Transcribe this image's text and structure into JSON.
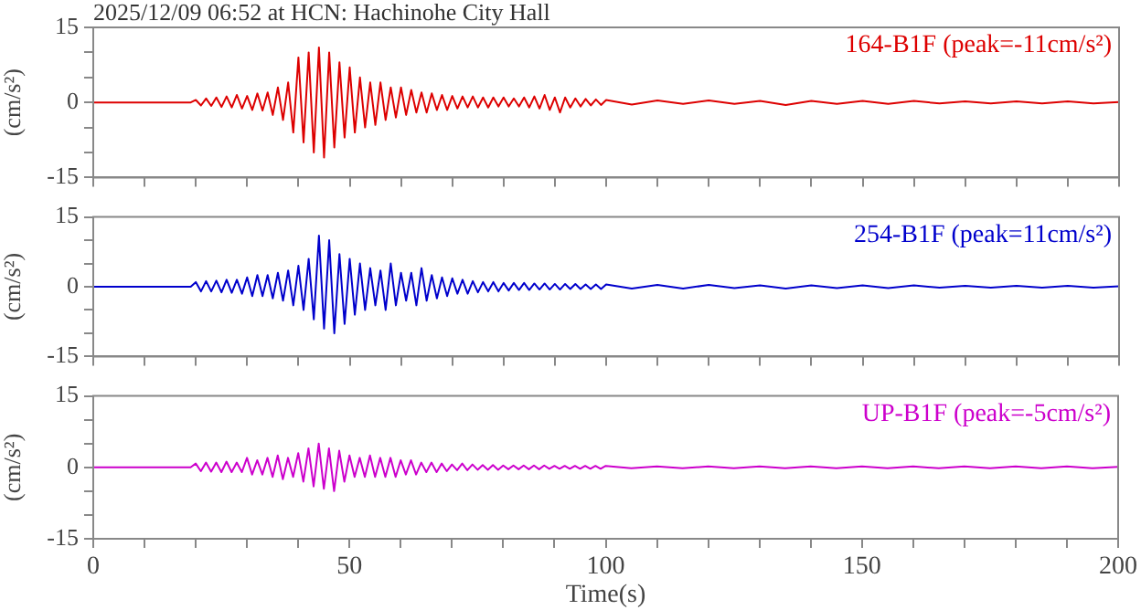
{
  "chart_data": [
    {
      "type": "line",
      "title": "2025/12/09 06:52 at HCN: Hachinohe City Hall",
      "ylabel": "(cm/s²)",
      "legend": "top right",
      "marker": "none",
      "grid": false,
      "tick_labels": "y",
      "xlim": [
        0,
        200
      ],
      "xticks": [
        0,
        {
          "value": 10,
          "label": null
        },
        {
          "value": 20,
          "label": null
        },
        {
          "value": 30,
          "label": null
        },
        {
          "value": 40,
          "label": null
        },
        50,
        {
          "value": 60,
          "label": null
        },
        {
          "value": 70,
          "label": null
        },
        {
          "value": 80,
          "label": null
        },
        {
          "value": 90,
          "label": null
        },
        100,
        {
          "value": 110,
          "label": null
        },
        {
          "value": 120,
          "label": null
        },
        {
          "value": 130,
          "label": null
        },
        {
          "value": 140,
          "label": null
        },
        150,
        {
          "value": 160,
          "label": null
        },
        {
          "value": 170,
          "label": null
        },
        {
          "value": 180,
          "label": null
        },
        {
          "value": 190,
          "label": null
        },
        200
      ],
      "ylim": [
        -15,
        15
      ],
      "yticks": [
        -15,
        {
          "value": -10,
          "label": null
        },
        {
          "value": -5,
          "label": null
        },
        0,
        {
          "value": 5,
          "label": null
        },
        {
          "value": 10,
          "label": null
        },
        15
      ],
      "x": [
        0,
        19,
        20,
        21,
        22,
        23,
        24,
        25,
        26,
        27,
        28,
        29,
        30,
        31,
        32,
        33,
        34,
        35,
        36,
        37,
        38,
        39,
        40,
        41,
        42,
        43,
        44,
        45,
        46,
        47,
        48,
        49,
        50,
        51,
        52,
        53,
        54,
        55,
        56,
        57,
        58,
        59,
        60,
        61,
        62,
        63,
        64,
        65,
        66,
        67,
        68,
        69,
        70,
        71,
        72,
        73,
        74,
        75,
        76,
        77,
        78,
        79,
        80,
        81,
        82,
        83,
        84,
        85,
        86,
        87,
        88,
        89,
        90,
        91,
        92,
        93,
        94,
        95,
        96,
        97,
        98,
        99,
        100,
        105,
        110,
        115,
        120,
        125,
        130,
        135,
        140,
        145,
        150,
        155,
        160,
        165,
        170,
        175,
        180,
        185,
        190,
        195,
        200
      ],
      "series": [
        {
          "name": "164-B1F (peak=-11cm/s²)",
          "color": "#dd0000",
          "values": [
            0,
            0,
            0.5,
            -0.6,
            0.8,
            -0.7,
            1,
            -0.9,
            1.2,
            -1,
            1.5,
            -1.2,
            1.3,
            -1.5,
            1.8,
            -1.6,
            2,
            -2.5,
            3,
            -3.5,
            4,
            -6,
            9,
            -8,
            10,
            -10,
            11,
            -11,
            10,
            -9,
            8,
            -7,
            7,
            -6,
            5,
            -5,
            4,
            -4.5,
            4,
            -3.5,
            3,
            -3,
            3,
            -2.5,
            2.5,
            -2,
            2,
            -2,
            1.8,
            -1.5,
            1.5,
            -1.5,
            1.3,
            -1.2,
            1.2,
            -1,
            1.2,
            -1,
            1,
            -1,
            1,
            -0.8,
            1,
            -0.8,
            0.8,
            -0.8,
            1,
            -1,
            1.2,
            -1.2,
            1.5,
            -1.5,
            1,
            -2,
            1,
            -1,
            0.8,
            -0.8,
            0.7,
            -0.6,
            0.6,
            -0.5,
            0.5,
            -0.4,
            0.4,
            -0.3,
            0.4,
            -0.3,
            0.3,
            -0.5,
            0.3,
            -0.3,
            0.3,
            -0.3,
            0.3,
            -0.2,
            0.2,
            -0.2,
            0.2,
            -0.2,
            0.2,
            -0.2,
            0.1
          ]
        }
      ]
    },
    {
      "type": "line",
      "ylabel": "(cm/s²)",
      "legend": "top right",
      "marker": "none",
      "grid": false,
      "tick_labels": "y",
      "xlim": [
        0,
        200
      ],
      "xticks": [
        0,
        {
          "value": 10,
          "label": null
        },
        {
          "value": 20,
          "label": null
        },
        {
          "value": 30,
          "label": null
        },
        {
          "value": 40,
          "label": null
        },
        50,
        {
          "value": 60,
          "label": null
        },
        {
          "value": 70,
          "label": null
        },
        {
          "value": 80,
          "label": null
        },
        {
          "value": 90,
          "label": null
        },
        100,
        {
          "value": 110,
          "label": null
        },
        {
          "value": 120,
          "label": null
        },
        {
          "value": 130,
          "label": null
        },
        {
          "value": 140,
          "label": null
        },
        150,
        {
          "value": 160,
          "label": null
        },
        {
          "value": 170,
          "label": null
        },
        {
          "value": 180,
          "label": null
        },
        {
          "value": 190,
          "label": null
        },
        200
      ],
      "ylim": [
        -15,
        15
      ],
      "yticks": [
        -15,
        {
          "value": -10,
          "label": null
        },
        {
          "value": -5,
          "label": null
        },
        0,
        {
          "value": 5,
          "label": null
        },
        {
          "value": 10,
          "label": null
        },
        15
      ],
      "x": [
        0,
        19,
        20,
        21,
        22,
        23,
        24,
        25,
        26,
        27,
        28,
        29,
        30,
        31,
        32,
        33,
        34,
        35,
        36,
        37,
        38,
        39,
        40,
        41,
        42,
        43,
        44,
        45,
        46,
        47,
        48,
        49,
        50,
        51,
        52,
        53,
        54,
        55,
        56,
        57,
        58,
        59,
        60,
        61,
        62,
        63,
        64,
        65,
        66,
        67,
        68,
        69,
        70,
        71,
        72,
        73,
        74,
        75,
        76,
        77,
        78,
        79,
        80,
        81,
        82,
        83,
        84,
        85,
        86,
        87,
        88,
        89,
        90,
        91,
        92,
        93,
        94,
        95,
        96,
        97,
        98,
        99,
        100,
        105,
        110,
        115,
        120,
        125,
        130,
        135,
        140,
        145,
        150,
        155,
        160,
        165,
        170,
        175,
        180,
        185,
        190,
        195,
        200
      ],
      "series": [
        {
          "name": "254-B1F (peak=11cm/s²)",
          "color": "#0000cc",
          "values": [
            0,
            0,
            1,
            -1,
            1.2,
            -1,
            1.3,
            -1.2,
            1.5,
            -1.3,
            1.5,
            -1.5,
            2,
            -2,
            2.5,
            -2,
            2.5,
            -2.5,
            3,
            -3,
            3.5,
            -4,
            4.5,
            -5,
            6,
            -7,
            11,
            -9,
            10,
            -10,
            7,
            -8,
            6,
            -6,
            5,
            -5,
            4,
            -4,
            3.5,
            -5,
            5,
            -4,
            3,
            -3,
            3,
            -4,
            4,
            -3,
            2.5,
            -2.5,
            2,
            -2,
            1.8,
            -1.5,
            1.5,
            -1.5,
            1.2,
            -1.2,
            1,
            -1,
            1,
            -1,
            0.8,
            -0.8,
            0.8,
            -0.7,
            0.8,
            -0.7,
            0.7,
            -0.6,
            0.7,
            -0.6,
            0.6,
            -0.6,
            0.6,
            -0.5,
            0.6,
            -0.5,
            0.5,
            -0.5,
            0.5,
            -0.5,
            0.5,
            -0.4,
            0.4,
            -0.4,
            0.4,
            -0.3,
            0.3,
            -0.4,
            0.3,
            -0.3,
            0.3,
            -0.3,
            0.3,
            -0.2,
            0.2,
            -0.2,
            0.2,
            -0.2,
            0.2,
            -0.2,
            0.1
          ]
        }
      ]
    },
    {
      "type": "line",
      "xlabel": "Time(s)",
      "ylabel": "(cm/s²)",
      "legend": "top right",
      "marker": "none",
      "grid": false,
      "xlim": [
        0,
        200
      ],
      "xticks": [
        0,
        {
          "value": 10,
          "label": null
        },
        {
          "value": 20,
          "label": null
        },
        {
          "value": 30,
          "label": null
        },
        {
          "value": 40,
          "label": null
        },
        50,
        {
          "value": 60,
          "label": null
        },
        {
          "value": 70,
          "label": null
        },
        {
          "value": 80,
          "label": null
        },
        {
          "value": 90,
          "label": null
        },
        100,
        {
          "value": 110,
          "label": null
        },
        {
          "value": 120,
          "label": null
        },
        {
          "value": 130,
          "label": null
        },
        {
          "value": 140,
          "label": null
        },
        150,
        {
          "value": 160,
          "label": null
        },
        {
          "value": 170,
          "label": null
        },
        {
          "value": 180,
          "label": null
        },
        {
          "value": 190,
          "label": null
        },
        200
      ],
      "ylim": [
        -15,
        15
      ],
      "yticks": [
        -15,
        {
          "value": -10,
          "label": null
        },
        {
          "value": -5,
          "label": null
        },
        0,
        {
          "value": 5,
          "label": null
        },
        {
          "value": 10,
          "label": null
        },
        15
      ],
      "x": [
        0,
        19,
        20,
        21,
        22,
        23,
        24,
        25,
        26,
        27,
        28,
        29,
        30,
        31,
        32,
        33,
        34,
        35,
        36,
        37,
        38,
        39,
        40,
        41,
        42,
        43,
        44,
        45,
        46,
        47,
        48,
        49,
        50,
        51,
        52,
        53,
        54,
        55,
        56,
        57,
        58,
        59,
        60,
        61,
        62,
        63,
        64,
        65,
        66,
        67,
        68,
        69,
        70,
        71,
        72,
        73,
        74,
        75,
        76,
        77,
        78,
        79,
        80,
        81,
        82,
        83,
        84,
        85,
        86,
        87,
        88,
        89,
        90,
        91,
        92,
        93,
        94,
        95,
        96,
        97,
        98,
        99,
        100,
        105,
        110,
        115,
        120,
        125,
        130,
        135,
        140,
        145,
        150,
        155,
        160,
        165,
        170,
        175,
        180,
        185,
        190,
        195,
        200
      ],
      "series": [
        {
          "name": "UP-B1F (peak=-5cm/s²)",
          "color": "#cc00cc",
          "values": [
            0,
            0,
            0.8,
            -0.8,
            1,
            -0.9,
            1,
            -1,
            1.2,
            -1,
            1,
            -1,
            2,
            -1.5,
            1.5,
            -1.5,
            2,
            -2,
            2.5,
            -2.5,
            2,
            -2,
            3,
            -3,
            4,
            -4,
            5,
            -4.5,
            4,
            -5,
            3.5,
            -3,
            2.5,
            -2,
            2,
            -2,
            2.5,
            -2,
            2,
            -2,
            2,
            -2,
            1.5,
            -1.5,
            1.5,
            -1.5,
            1,
            -1,
            1,
            -1,
            0.8,
            -0.8,
            0.6,
            -0.6,
            0.8,
            -0.6,
            0.6,
            -0.5,
            0.5,
            -0.5,
            0.5,
            -0.5,
            0.4,
            -0.4,
            0.4,
            -0.4,
            0.4,
            -0.4,
            0.4,
            -0.4,
            0.4,
            -0.3,
            0.3,
            -0.3,
            0.3,
            -0.3,
            0.3,
            -0.3,
            0.3,
            -0.3,
            0.3,
            -0.3,
            0.3,
            -0.2,
            0.2,
            -0.2,
            0.2,
            -0.2,
            0.2,
            -0.2,
            0.2,
            -0.2,
            0.2,
            -0.2,
            0.2,
            -0.2,
            0.2,
            -0.2,
            0.2,
            -0.2,
            0.2,
            -0.2,
            0.1
          ]
        }
      ]
    }
  ]
}
